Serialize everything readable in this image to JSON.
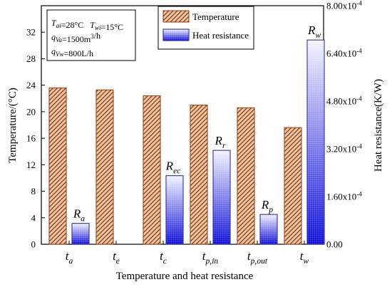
{
  "chart_data": {
    "type": "bar",
    "categories": [
      "t_a",
      "t_e",
      "t_c",
      "t_p,in",
      "t_p,out",
      "t_w"
    ],
    "category_labels": [
      {
        "main": "t",
        "sub": "a"
      },
      {
        "main": "t",
        "sub": "e"
      },
      {
        "main": "t",
        "sub": "c"
      },
      {
        "main": "t",
        "sub": "p,in"
      },
      {
        "main": "t",
        "sub": "p,out"
      },
      {
        "main": "t",
        "sub": "w"
      }
    ],
    "series": [
      {
        "name": "Temperature",
        "axis": "left",
        "pattern": "diagonal-hatch",
        "color": "#f2c7a6",
        "stroke": "#8b3a10",
        "values": [
          23.6,
          23.3,
          22.4,
          21.0,
          20.6,
          17.6
        ]
      },
      {
        "name": "Heat resistance",
        "axis": "right",
        "pattern": "grid-gradient",
        "color_top": "#f4f4ff",
        "color_bottom": "#0a0ad8",
        "stroke": "#1a1a8c",
        "values": [
          7e-05,
          null,
          0.00023,
          0.000315,
          0.0001,
          0.000685
        ],
        "labels": [
          {
            "main": "R",
            "sub": "a"
          },
          null,
          {
            "main": "R",
            "sub": "ec"
          },
          {
            "main": "R",
            "sub": "r"
          },
          {
            "main": "R",
            "sub": "p"
          },
          {
            "main": "R",
            "sub": "w"
          }
        ]
      }
    ],
    "xlabel": "Temperature and heat resistance",
    "ylabel_left": "Temperature/(°C)",
    "ylabel_right": "Heat resistance(K/W)",
    "ylim_left": [
      0,
      36
    ],
    "yticks_left": [
      0,
      4,
      8,
      12,
      16,
      20,
      24,
      28,
      32
    ],
    "ylim_right": [
      0,
      0.0008
    ],
    "yticks_right": [
      0,
      0.00016,
      0.00032,
      0.00048,
      0.00064,
      0.0008
    ],
    "ytick_labels_right": [
      "0.00",
      "1.60x10^-4",
      "3.20x10^-4",
      "4.80x10^-4",
      "6.40x10^-4",
      "8.00x10^-4"
    ],
    "legend": {
      "placement": "top-right",
      "entries": [
        "Temperature",
        "Heat resistance"
      ]
    },
    "conditions_box": {
      "placement": "top-left",
      "lines": [
        [
          {
            "main": "T",
            "sub": "ai"
          },
          {
            "text": "=28°C   "
          },
          {
            "main": "T",
            "sub": "wi"
          },
          {
            "text": "=15°C"
          }
        ],
        [
          {
            "main": "q",
            "sub": "Va"
          },
          {
            "text": "=1500m"
          },
          {
            "sup": "3"
          },
          {
            "text": "/h"
          }
        ],
        [
          {
            "main": "q",
            "sub": "Vw"
          },
          {
            "text": "=800L/h"
          }
        ]
      ]
    },
    "grid": false
  }
}
